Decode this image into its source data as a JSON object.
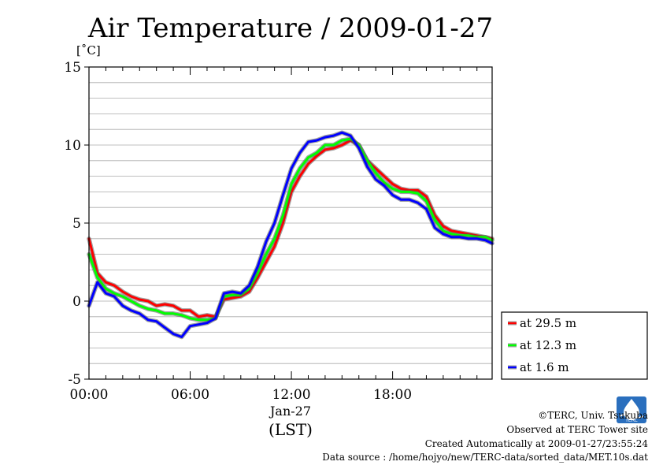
{
  "chart_data": {
    "type": "line",
    "title": "Air Temperature / 2009-01-27",
    "ylabel": "[˚C]",
    "xlabel": "(LST)",
    "date_label": "Jan-27",
    "xlim": [
      0,
      23.9
    ],
    "ylim": [
      -5,
      15
    ],
    "yticks": [
      -5,
      0,
      5,
      10,
      15
    ],
    "xticks": [
      {
        "hour": 0,
        "label": "00:00"
      },
      {
        "hour": 6,
        "label": "06:00"
      },
      {
        "hour": 12,
        "label": "12:00"
      },
      {
        "hour": 18,
        "label": "18:00"
      }
    ],
    "grid": true,
    "legend_position": "right",
    "x": [
      0,
      0.5,
      1,
      1.5,
      2,
      2.5,
      3,
      3.5,
      4,
      4.5,
      5,
      5.5,
      6,
      6.5,
      7,
      7.5,
      8,
      8.5,
      9,
      9.5,
      10,
      10.5,
      11,
      11.5,
      12,
      12.5,
      13,
      13.5,
      14,
      14.5,
      15,
      15.5,
      16,
      16.5,
      17,
      17.5,
      18,
      18.5,
      19,
      19.5,
      20,
      20.5,
      21,
      21.5,
      22,
      22.5,
      23,
      23.5,
      23.9
    ],
    "series": [
      {
        "name": "at 29.5 m",
        "color": "#ff0000",
        "values": [
          4.0,
          1.8,
          1.2,
          1.0,
          0.6,
          0.3,
          0.1,
          0.0,
          -0.3,
          -0.2,
          -0.3,
          -0.6,
          -0.6,
          -1.0,
          -0.9,
          -1.0,
          0.1,
          0.2,
          0.3,
          0.6,
          1.5,
          2.5,
          3.5,
          5.0,
          7.0,
          8.0,
          8.8,
          9.3,
          9.7,
          9.8,
          10.0,
          10.3,
          10.0,
          9.0,
          8.5,
          8.0,
          7.5,
          7.2,
          7.1,
          7.1,
          6.7,
          5.5,
          4.8,
          4.5,
          4.4,
          4.3,
          4.2,
          4.1,
          4.0
        ]
      },
      {
        "name": "at 12.3 m",
        "color": "#00ff00",
        "values": [
          3.0,
          1.5,
          0.8,
          0.5,
          0.3,
          0.0,
          -0.3,
          -0.5,
          -0.6,
          -0.8,
          -0.8,
          -0.9,
          -1.1,
          -1.2,
          -1.2,
          -1.1,
          0.3,
          0.4,
          0.4,
          0.8,
          1.8,
          3.0,
          4.0,
          5.5,
          7.5,
          8.5,
          9.2,
          9.5,
          10.0,
          10.0,
          10.3,
          10.4,
          10.0,
          9.0,
          8.2,
          7.6,
          7.2,
          7.0,
          7.0,
          6.9,
          6.4,
          5.2,
          4.5,
          4.3,
          4.2,
          4.2,
          4.1,
          4.1,
          3.9
        ]
      },
      {
        "name": "at 1.6 m",
        "color": "#0000ff",
        "values": [
          -0.3,
          1.2,
          0.5,
          0.3,
          -0.3,
          -0.6,
          -0.8,
          -1.2,
          -1.3,
          -1.7,
          -2.1,
          -2.3,
          -1.6,
          -1.5,
          -1.4,
          -1.1,
          0.5,
          0.6,
          0.5,
          1.0,
          2.2,
          3.8,
          5.0,
          6.8,
          8.5,
          9.5,
          10.2,
          10.3,
          10.5,
          10.6,
          10.8,
          10.6,
          9.8,
          8.6,
          7.8,
          7.4,
          6.8,
          6.5,
          6.5,
          6.3,
          5.9,
          4.7,
          4.3,
          4.1,
          4.1,
          4.0,
          4.0,
          3.9,
          3.7
        ]
      }
    ]
  },
  "credits": {
    "copyright": "©TERC, Univ. Tsukuba",
    "site": "Observed at TERC Tower site",
    "created": "Created Automatically at 2009-01-27/23:55:24",
    "source": "Data source : /home/hojyo/new/TERC-data/sorted_data/MET.10s.dat",
    "logo_text": "TERC"
  }
}
